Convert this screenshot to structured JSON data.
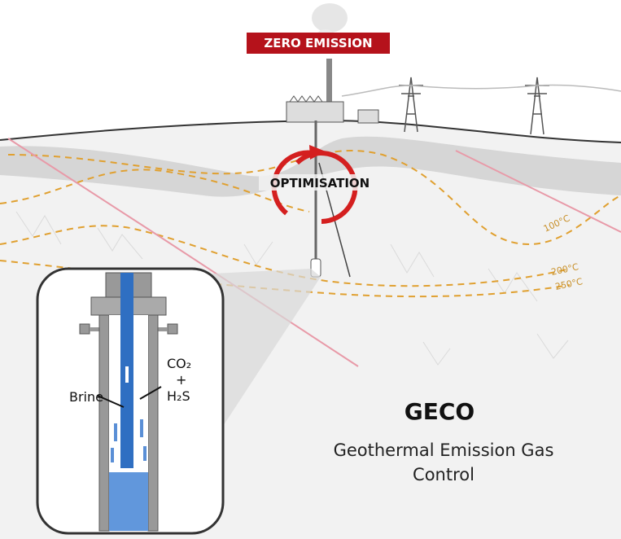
{
  "banner": "ZERO EMISSION",
  "cycle_label": "OPTIMISATION",
  "isotherms": [
    "100°C",
    "200°C",
    "250°C"
  ],
  "inset": {
    "brine": "Brine",
    "gas_top": "CO₂",
    "gas_plus": "+",
    "gas_bottom": "H₂S"
  },
  "caption": {
    "title": "GECO",
    "subtitle_line1": "Geothermal Emission Gas",
    "subtitle_line2": "Control"
  }
}
